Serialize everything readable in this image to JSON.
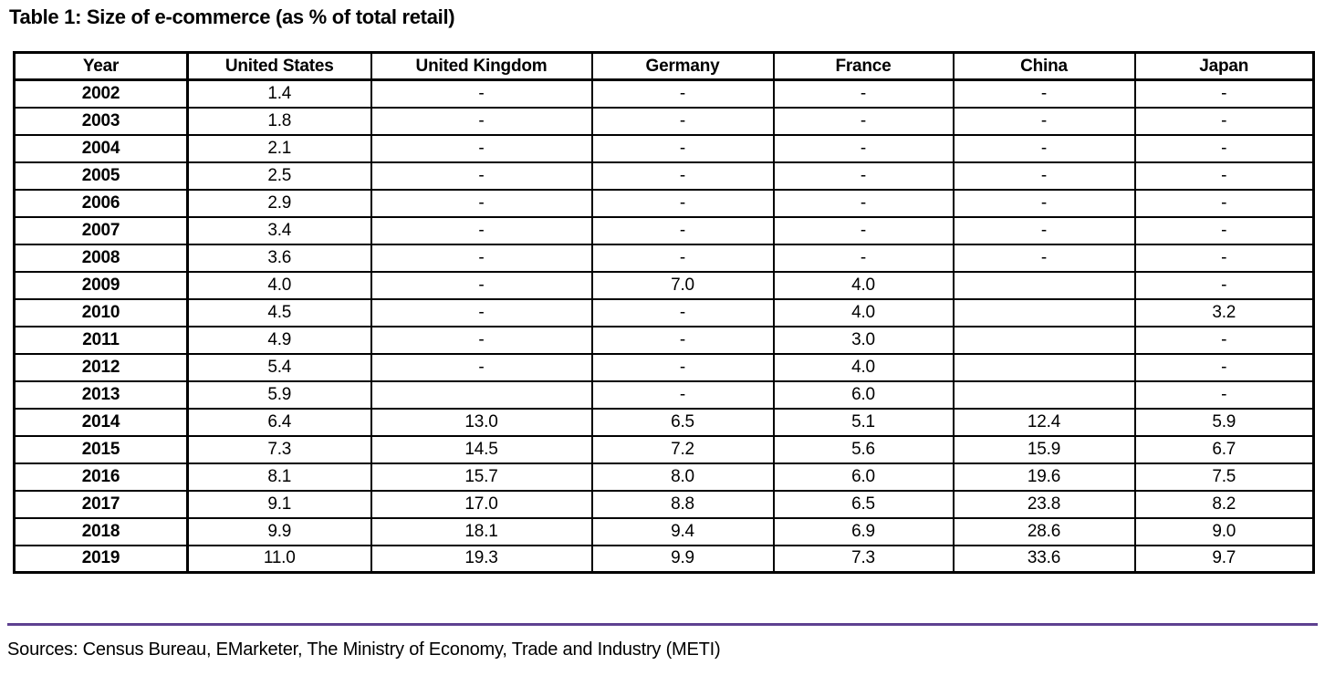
{
  "page": {
    "title": "Table 1: Size of e-commerce (as % of total retail)",
    "source_note": "Sources: Census Bureau, EMarketer, The Ministry of Economy, Trade and Industry (METI)"
  },
  "colors": {
    "divider": "#5e4191",
    "table_border": "#000000",
    "text": "#000000",
    "background": "#ffffff"
  },
  "table": {
    "headers": [
      "Year",
      "United States",
      "United Kingdom",
      "Germany",
      "France",
      "China",
      "Japan"
    ],
    "rows": [
      {
        "year": "2002",
        "values": [
          "1.4",
          "-",
          "-",
          "-",
          "-",
          "-"
        ]
      },
      {
        "year": "2003",
        "values": [
          "1.8",
          "-",
          "-",
          "-",
          "-",
          "-"
        ]
      },
      {
        "year": "2004",
        "values": [
          "2.1",
          "-",
          "-",
          "-",
          "-",
          "-"
        ]
      },
      {
        "year": "2005",
        "values": [
          "2.5",
          "-",
          "-",
          "-",
          "-",
          "-"
        ]
      },
      {
        "year": "2006",
        "values": [
          "2.9",
          "-",
          "-",
          "-",
          "-",
          "-"
        ]
      },
      {
        "year": "2007",
        "values": [
          "3.4",
          "-",
          "-",
          "-",
          "-",
          "-"
        ]
      },
      {
        "year": "2008",
        "values": [
          "3.6",
          "-",
          "-",
          "-",
          "-",
          "-"
        ]
      },
      {
        "year": "2009",
        "values": [
          "4.0",
          "-",
          "7.0",
          "4.0",
          "",
          "-"
        ]
      },
      {
        "year": "2010",
        "values": [
          "4.5",
          "-",
          "-",
          "4.0",
          "",
          "3.2"
        ]
      },
      {
        "year": "2011",
        "values": [
          "4.9",
          "-",
          "-",
          "3.0",
          "",
          "-"
        ]
      },
      {
        "year": "2012",
        "values": [
          "5.4",
          "-",
          "-",
          "4.0",
          "",
          "-"
        ]
      },
      {
        "year": "2013",
        "values": [
          "5.9",
          "",
          "-",
          "6.0",
          "",
          "-"
        ]
      },
      {
        "year": "2014",
        "values": [
          "6.4",
          "13.0",
          "6.5",
          "5.1",
          "12.4",
          "5.9"
        ]
      },
      {
        "year": "2015",
        "values": [
          "7.3",
          "14.5",
          "7.2",
          "5.6",
          "15.9",
          "6.7"
        ]
      },
      {
        "year": "2016",
        "values": [
          "8.1",
          "15.7",
          "8.0",
          "6.0",
          "19.6",
          "7.5"
        ]
      },
      {
        "year": "2017",
        "values": [
          "9.1",
          "17.0",
          "8.8",
          "6.5",
          "23.8",
          "8.2"
        ]
      },
      {
        "year": "2018",
        "values": [
          "9.9",
          "18.1",
          "9.4",
          "6.9",
          "28.6",
          "9.0"
        ]
      },
      {
        "year": "2019",
        "values": [
          "11.0",
          "19.3",
          "9.9",
          "7.3",
          "33.6",
          "9.7"
        ]
      }
    ]
  }
}
